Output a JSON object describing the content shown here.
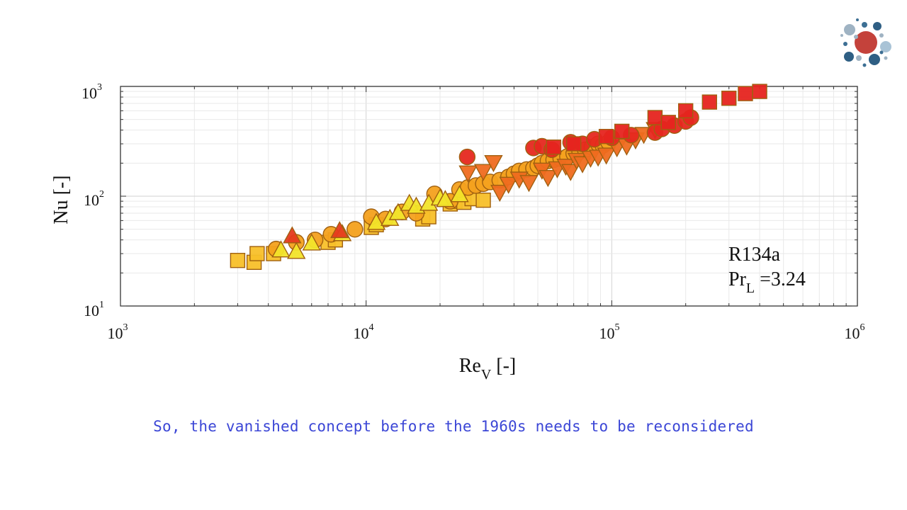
{
  "colors": {
    "red": "#e5241f",
    "orange_red": "#ef5a1e",
    "orange": "#f49a1a",
    "amber": "#f8b820",
    "yellow": "#f2e51f",
    "marker_edge": "#a06010",
    "caption": "#3b46d6"
  },
  "logo": {
    "icon": "dot-cluster-logo-icon"
  },
  "caption": "So, the vanished concept before the 1960s needs to be reconsidered",
  "chart_data": {
    "type": "scatter",
    "xscale": "log",
    "yscale": "log",
    "xlim": [
      1000,
      1000000
    ],
    "ylim": [
      10,
      1000
    ],
    "grid": true,
    "xlabel": {
      "main": "Re",
      "sub": "V",
      "rest": " [-]"
    },
    "ylabel": "Nu [-]",
    "x_ticks": [
      {
        "base": "10",
        "exp": "3"
      },
      {
        "base": "10",
        "exp": "4"
      },
      {
        "base": "10",
        "exp": "5"
      },
      {
        "base": "10",
        "exp": "6"
      }
    ],
    "y_ticks": [
      {
        "base": "10",
        "exp": "1"
      },
      {
        "base": "10",
        "exp": "2"
      },
      {
        "base": "10",
        "exp": "3"
      }
    ],
    "annotation": {
      "line1": "R134a",
      "line2_main": "Pr",
      "line2_sub": "L",
      "line2_rest": " =3.24"
    },
    "series": [
      {
        "marker": "square",
        "color": "#f8c02a",
        "points": [
          [
            3000,
            26
          ],
          [
            3500,
            25
          ],
          [
            3600,
            30
          ],
          [
            4200,
            30
          ],
          [
            7000,
            38
          ],
          [
            7500,
            40
          ],
          [
            10500,
            52
          ],
          [
            11000,
            55
          ],
          [
            17000,
            62
          ],
          [
            18000,
            65
          ],
          [
            22000,
            85
          ],
          [
            23000,
            90
          ],
          [
            25000,
            88
          ],
          [
            27000,
            95
          ],
          [
            30000,
            92
          ]
        ]
      },
      {
        "marker": "circle",
        "color": "#f4a11e",
        "points": [
          [
            4300,
            33
          ],
          [
            5200,
            38
          ],
          [
            6200,
            40
          ],
          [
            7200,
            45
          ],
          [
            9000,
            50
          ],
          [
            10500,
            65
          ],
          [
            12000,
            62
          ],
          [
            14000,
            72
          ],
          [
            16000,
            70
          ],
          [
            19000,
            105
          ],
          [
            22000,
            90
          ],
          [
            24000,
            115
          ],
          [
            26000,
            120
          ],
          [
            28000,
            125
          ],
          [
            30000,
            130
          ],
          [
            32000,
            135
          ],
          [
            35000,
            140
          ],
          [
            38000,
            150
          ],
          [
            40000,
            160
          ],
          [
            42000,
            170
          ],
          [
            45000,
            175
          ],
          [
            48000,
            180
          ],
          [
            50000,
            190
          ],
          [
            52000,
            200
          ],
          [
            55000,
            210
          ],
          [
            58000,
            215
          ],
          [
            62000,
            220
          ],
          [
            66000,
            230
          ],
          [
            70000,
            245
          ],
          [
            74000,
            255
          ],
          [
            78000,
            265
          ],
          [
            83000,
            280
          ],
          [
            88000,
            300
          ],
          [
            92000,
            290
          ],
          [
            97000,
            310
          ]
        ]
      },
      {
        "marker": "triangle-up",
        "color": "#f2e42a",
        "points": [
          [
            4500,
            32
          ],
          [
            5200,
            31
          ],
          [
            6000,
            37
          ],
          [
            8000,
            45
          ],
          [
            11000,
            57
          ],
          [
            12500,
            62
          ],
          [
            13500,
            70
          ],
          [
            15000,
            85
          ],
          [
            16000,
            80
          ],
          [
            18000,
            85
          ],
          [
            20000,
            95
          ],
          [
            21000,
            92
          ],
          [
            24000,
            102
          ]
        ]
      },
      {
        "marker": "triangle-up",
        "color": "#e53a1f",
        "points": [
          [
            5000,
            43
          ],
          [
            7800,
            48
          ]
        ]
      },
      {
        "marker": "triangle-down",
        "color": "#ef6c1f",
        "points": [
          [
            26000,
            165
          ],
          [
            30000,
            170
          ],
          [
            33000,
            205
          ],
          [
            35000,
            110
          ],
          [
            38000,
            130
          ],
          [
            42000,
            145
          ],
          [
            46000,
            135
          ],
          [
            52000,
            175
          ],
          [
            55000,
            150
          ],
          [
            60000,
            180
          ],
          [
            65000,
            190
          ],
          [
            68000,
            170
          ],
          [
            72000,
            215
          ],
          [
            76000,
            200
          ],
          [
            82000,
            225
          ],
          [
            88000,
            230
          ],
          [
            95000,
            240
          ],
          [
            105000,
            280
          ],
          [
            115000,
            290
          ],
          [
            125000,
            330
          ],
          [
            135000,
            370
          ],
          [
            150000,
            410
          ]
        ]
      },
      {
        "marker": "circle",
        "color": "#e6281f",
        "points": [
          [
            25800,
            228
          ],
          [
            48000,
            275
          ],
          [
            52000,
            285
          ],
          [
            57000,
            265
          ],
          [
            68000,
            310
          ],
          [
            76000,
            300
          ],
          [
            85000,
            330
          ],
          [
            100000,
            340
          ],
          [
            120000,
            360
          ],
          [
            150000,
            380
          ],
          [
            160000,
            410
          ],
          [
            180000,
            440
          ],
          [
            200000,
            480
          ],
          [
            210000,
            520
          ]
        ]
      },
      {
        "marker": "square",
        "color": "#e6241f",
        "points": [
          [
            58000,
            280
          ],
          [
            70000,
            300
          ],
          [
            95000,
            350
          ],
          [
            110000,
            390
          ],
          [
            150000,
            520
          ],
          [
            170000,
            470
          ],
          [
            200000,
            600
          ],
          [
            250000,
            720
          ],
          [
            300000,
            780
          ],
          [
            350000,
            860
          ],
          [
            400000,
            900
          ]
        ]
      }
    ]
  }
}
